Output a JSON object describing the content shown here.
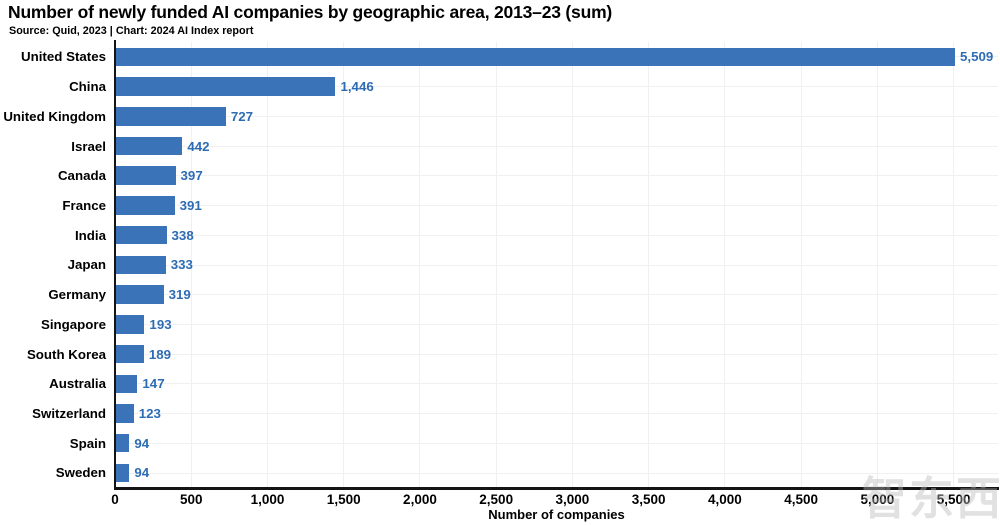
{
  "header": {
    "title": "Number of newly funded AI companies by geographic area, 2013–23 (sum)",
    "subtitle": "Source: Quid, 2023 | Chart: 2024 AI Index report"
  },
  "chart_data": {
    "type": "bar",
    "orientation": "horizontal",
    "title": "Number of newly funded AI companies by geographic area, 2013–23 (sum)",
    "xlabel": "Number of companies",
    "ylabel": "",
    "categories": [
      "United States",
      "China",
      "United Kingdom",
      "Israel",
      "Canada",
      "France",
      "India",
      "Japan",
      "Germany",
      "Singapore",
      "South Korea",
      "Australia",
      "Switzerland",
      "Spain",
      "Sweden"
    ],
    "values": [
      5509,
      1446,
      727,
      442,
      397,
      391,
      338,
      333,
      319,
      193,
      189,
      147,
      123,
      94,
      94
    ],
    "value_labels": [
      "5,509",
      "1,446",
      "727",
      "442",
      "397",
      "391",
      "338",
      "333",
      "319",
      "193",
      "189",
      "147",
      "123",
      "94",
      "94"
    ],
    "xlim": [
      0,
      5791
    ],
    "x_ticks": [
      0,
      500,
      1000,
      1500,
      2000,
      2500,
      3000,
      3500,
      4000,
      4500,
      5000,
      5500
    ],
    "x_tick_labels": [
      "0",
      "500",
      "1,000",
      "1,500",
      "2,000",
      "2,500",
      "3,000",
      "3,500",
      "4,000",
      "4,500",
      "5,000",
      "5,500"
    ],
    "grid": true,
    "legend": "none",
    "bar_color": "#3a73b8",
    "value_label_color": "#2d6cb3",
    "axis_color": "#141414",
    "grid_color": "#f0f0f3"
  },
  "watermark": {
    "text": "智东西"
  }
}
